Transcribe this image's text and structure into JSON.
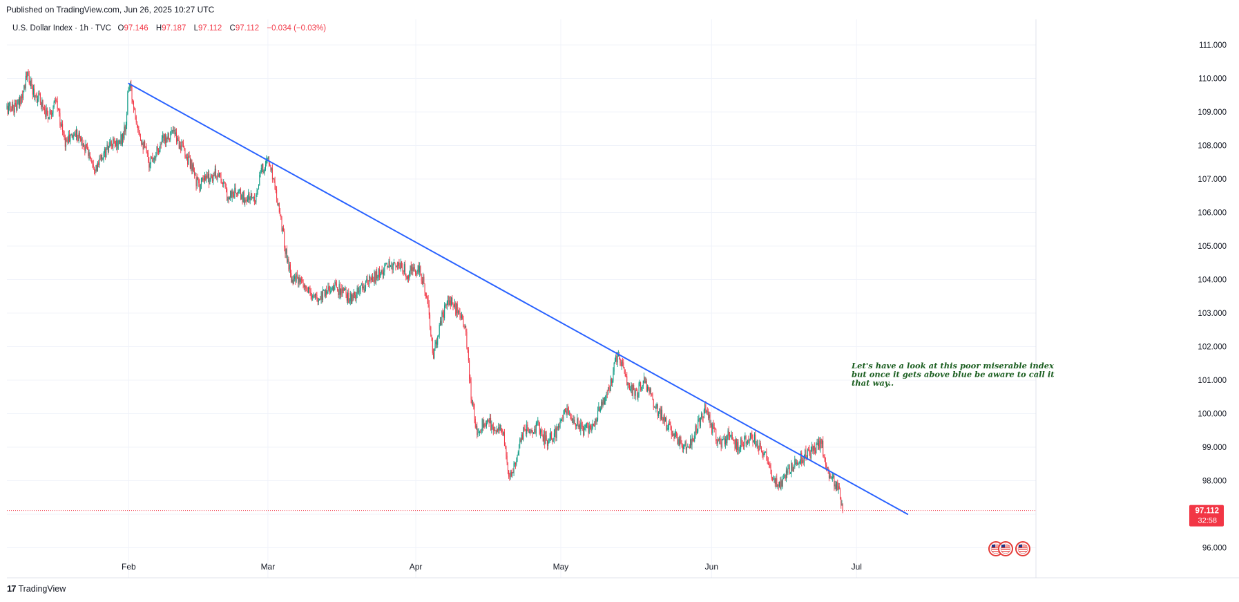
{
  "header": {
    "published": "Published on TradingView.com, Jun 26, 2025 10:27 UTC"
  },
  "legend": {
    "symbol": "U.S. Dollar Index · 1h · TVC",
    "o_label": "O",
    "o_value": "97.146",
    "h_label": "H",
    "h_value": "97.187",
    "l_label": "L",
    "l_value": "97.112",
    "c_label": "C",
    "c_value": "97.112",
    "change": "−0.034 (−0.03%)"
  },
  "chart_data": {
    "type": "candlestick",
    "title": "U.S. Dollar Index · 1h · TVC",
    "ylim": [
      95.3,
      111.6
    ],
    "xlim_days": [
      0,
      178.5
    ],
    "y_ticks": [
      "111.000",
      "110.000",
      "109.000",
      "108.000",
      "107.000",
      "106.000",
      "105.000",
      "104.000",
      "103.000",
      "102.000",
      "101.000",
      "100.000",
      "99.000",
      "98.000",
      "96.000"
    ],
    "y_tick_values": [
      111,
      110,
      109,
      108,
      107,
      106,
      105,
      104,
      103,
      102,
      101,
      100,
      99,
      98,
      96
    ],
    "x_ticks": [
      {
        "label": "Feb",
        "day": 21
      },
      {
        "label": "Mar",
        "day": 45
      },
      {
        "label": "Apr",
        "day": 70.5
      },
      {
        "label": "May",
        "day": 95.5
      },
      {
        "label": "Jun",
        "day": 121.5
      },
      {
        "label": "Jul",
        "day": 146.5
      }
    ],
    "price_path": [
      [
        0,
        109.1
      ],
      [
        2,
        109.2
      ],
      [
        3,
        109.8
      ],
      [
        3.5,
        110.1
      ],
      [
        4.5,
        109.6
      ],
      [
        6,
        109.3
      ],
      [
        7,
        108.9
      ],
      [
        8.5,
        109.3
      ],
      [
        10,
        108.1
      ],
      [
        12,
        108.4
      ],
      [
        14,
        107.8
      ],
      [
        15.5,
        107.3
      ],
      [
        16.5,
        107.7
      ],
      [
        18,
        108.0
      ],
      [
        19.5,
        108.1
      ],
      [
        20.5,
        108.5
      ],
      [
        21,
        109.9
      ],
      [
        22,
        109.1
      ],
      [
        23,
        108.3
      ],
      [
        24.5,
        107.5
      ],
      [
        26,
        107.9
      ],
      [
        27.5,
        108.3
      ],
      [
        28.5,
        108.4
      ],
      [
        30,
        108.0
      ],
      [
        31.5,
        107.5
      ],
      [
        33,
        106.8
      ],
      [
        34.5,
        107.0
      ],
      [
        36.5,
        107.2
      ],
      [
        38,
        106.5
      ],
      [
        39.5,
        106.6
      ],
      [
        41,
        106.4
      ],
      [
        43,
        106.5
      ],
      [
        43.8,
        107.2
      ],
      [
        45,
        107.6
      ],
      [
        46,
        107.0
      ],
      [
        47,
        106.1
      ],
      [
        48,
        104.9
      ],
      [
        49,
        104.1
      ],
      [
        50.5,
        103.9
      ],
      [
        52,
        103.6
      ],
      [
        53.5,
        103.4
      ],
      [
        55,
        103.7
      ],
      [
        56.5,
        103.8
      ],
      [
        58,
        103.6
      ],
      [
        59.5,
        103.4
      ],
      [
        61,
        103.7
      ],
      [
        63,
        104.0
      ],
      [
        65,
        104.3
      ],
      [
        67,
        104.5
      ],
      [
        69,
        104.2
      ],
      [
        71,
        104.3
      ],
      [
        72.5,
        103.5
      ],
      [
        73.5,
        101.6
      ],
      [
        74.5,
        102.6
      ],
      [
        76,
        103.4
      ],
      [
        77.5,
        103.1
      ],
      [
        79,
        102.6
      ],
      [
        80,
        100.6
      ],
      [
        81,
        99.5
      ],
      [
        82.5,
        99.8
      ],
      [
        84,
        99.6
      ],
      [
        85.5,
        99.5
      ],
      [
        86.5,
        98.1
      ],
      [
        87.5,
        98.4
      ],
      [
        88.5,
        99.3
      ],
      [
        90,
        99.6
      ],
      [
        91.5,
        99.6
      ],
      [
        93,
        99.2
      ],
      [
        94.5,
        99.4
      ],
      [
        96.5,
        100.1
      ],
      [
        98,
        99.8
      ],
      [
        99.5,
        99.5
      ],
      [
        101,
        99.7
      ],
      [
        102.5,
        100.3
      ],
      [
        104,
        100.8
      ],
      [
        105,
        101.7
      ],
      [
        106,
        101.5
      ],
      [
        107,
        100.8
      ],
      [
        108.5,
        100.6
      ],
      [
        110,
        101.0
      ],
      [
        111.5,
        100.3
      ],
      [
        113,
        99.9
      ],
      [
        114.5,
        99.5
      ],
      [
        116,
        99.2
      ],
      [
        117.5,
        98.9
      ],
      [
        119,
        99.6
      ],
      [
        120.5,
        100.2
      ],
      [
        121.5,
        99.6
      ],
      [
        123,
        99.1
      ],
      [
        124.5,
        99.4
      ],
      [
        126,
        99.0
      ],
      [
        127.5,
        99.3
      ],
      [
        129,
        99.2
      ],
      [
        130.5,
        98.9
      ],
      [
        132,
        98.0
      ],
      [
        133.5,
        97.9
      ],
      [
        135,
        98.3
      ],
      [
        136.5,
        98.6
      ],
      [
        138,
        98.8
      ],
      [
        139.5,
        98.9
      ],
      [
        140.5,
        99.3
      ],
      [
        141,
        98.4
      ],
      [
        142,
        98.2
      ],
      [
        143.5,
        97.7
      ],
      [
        144.2,
        97.112
      ]
    ],
    "trendline": {
      "start": {
        "day": 21,
        "price": 109.85
      },
      "end": {
        "day": 155.3,
        "price": 97.0
      }
    },
    "current_price": {
      "value": "97.112",
      "countdown": "32:58"
    },
    "annotation": [
      "Let's have a look at this poor miserable index",
      "but once it gets above blue be aware to call it",
      "that way.."
    ],
    "colors": {
      "up": "#089981",
      "down": "#f23645",
      "trendline": "#2962ff",
      "price_line": "#f23645",
      "grid": "#f0f3fa",
      "annotation": "#1b5e20",
      "flag_red": "#e53935"
    }
  },
  "branding": {
    "logo": "17",
    "name": "TradingView"
  }
}
